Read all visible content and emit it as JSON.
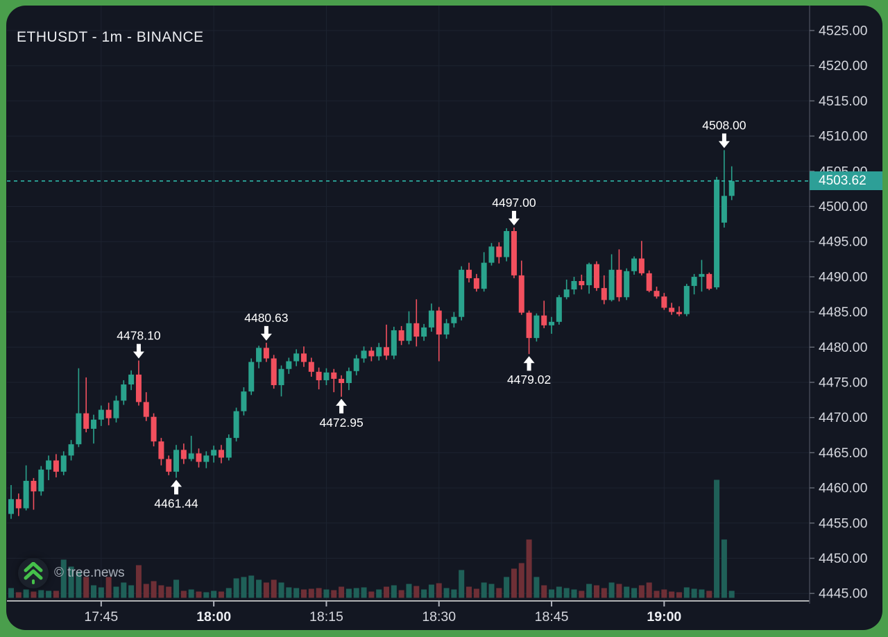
{
  "header": {
    "title": "ETHUSDT - 1m - BINANCE"
  },
  "watermark": {
    "text": "© tree.news",
    "logo": "tree-double-chevron-up-icon"
  },
  "price_tag": {
    "value": "4503.62"
  },
  "colors": {
    "frame": "#4a9e4c",
    "bg": "#131722",
    "grid": "#1d2330",
    "up": "#2aa38d",
    "down": "#f2505e",
    "vol_up": "#1f6058",
    "vol_down": "#6e2f36",
    "axis_text": "#d6d8df",
    "axis_text_bold": "#eceef2",
    "axis_line": "#454a57",
    "separator": "#e8e8e8",
    "last_line": "#2fb8a9",
    "tag_bg": "#2d9f97",
    "tag_text": "#ffffff",
    "annotation": "#ffffff",
    "title": "#eceef2",
    "watermark_text": "#aab0ba",
    "logo_green": "#45c04a"
  },
  "chart_data": {
    "type": "candlestick",
    "symbol": "ETHUSDT",
    "interval": "1m",
    "exchange": "BINANCE",
    "title": "ETHUSDT - 1m - BINANCE",
    "last_price": 4503.62,
    "y_axis": {
      "side": "right",
      "min": 4443,
      "max": 4527,
      "tick_step": 5,
      "tick_labels": [
        "4525.00",
        "4520.00",
        "4515.00",
        "4510.00",
        "4505.00",
        "4500.00",
        "4495.00",
        "4490.00",
        "4485.00",
        "4480.00",
        "4475.00",
        "4470.00",
        "4465.00",
        "4460.00",
        "4455.00",
        "4450.00",
        "4445.00"
      ],
      "tick_prices": [
        4525,
        4520,
        4515,
        4510,
        4505,
        4500,
        4495,
        4490,
        4485,
        4480,
        4475,
        4470,
        4465,
        4460,
        4455,
        4450,
        4445
      ]
    },
    "x_axis": {
      "ticks": [
        {
          "label": "17:45",
          "index": 12,
          "bold": false
        },
        {
          "label": "18:00",
          "index": 27,
          "bold": true
        },
        {
          "label": "18:15",
          "index": 42,
          "bold": false
        },
        {
          "label": "18:30",
          "index": 57,
          "bold": false
        },
        {
          "label": "18:45",
          "index": 72,
          "bold": false
        },
        {
          "label": "19:00",
          "index": 87,
          "bold": true
        }
      ]
    },
    "annotations": [
      {
        "label": "4478.10",
        "index": 17,
        "price": 4478.1,
        "direction": "down"
      },
      {
        "label": "4461.44",
        "index": 22,
        "price": 4461.44,
        "direction": "up"
      },
      {
        "label": "4480.63",
        "index": 34,
        "price": 4480.63,
        "direction": "down"
      },
      {
        "label": "4472.95",
        "index": 44,
        "price": 4472.95,
        "direction": "up"
      },
      {
        "label": "4497.00",
        "index": 67,
        "price": 4497.0,
        "direction": "down"
      },
      {
        "label": "4479.02",
        "index": 69,
        "price": 4479.02,
        "direction": "up"
      },
      {
        "label": "4508.00",
        "index": 95,
        "price": 4508.0,
        "direction": "down"
      }
    ],
    "candles": [
      {
        "t": "17:33",
        "o": 4456.3,
        "h": 4460.4,
        "l": 4455.6,
        "c": 4458.4,
        "v": 14
      },
      {
        "t": "17:34",
        "o": 4458.4,
        "h": 4459.2,
        "l": 4456.0,
        "c": 4457.1,
        "v": 8
      },
      {
        "t": "17:35",
        "o": 4457.1,
        "h": 4463.2,
        "l": 4456.8,
        "c": 4461.0,
        "v": 12
      },
      {
        "t": "17:36",
        "o": 4461.0,
        "h": 4461.4,
        "l": 4456.9,
        "c": 4459.5,
        "v": 9
      },
      {
        "t": "17:37",
        "o": 4459.5,
        "h": 4463.1,
        "l": 4458.9,
        "c": 4462.6,
        "v": 11
      },
      {
        "t": "17:38",
        "o": 4462.6,
        "h": 4464.6,
        "l": 4461.1,
        "c": 4463.9,
        "v": 10
      },
      {
        "t": "17:39",
        "o": 4463.9,
        "h": 4464.8,
        "l": 4461.5,
        "c": 4462.3,
        "v": 10
      },
      {
        "t": "17:40",
        "o": 4462.3,
        "h": 4465.2,
        "l": 4461.8,
        "c": 4464.6,
        "v": 55
      },
      {
        "t": "17:41",
        "o": 4464.6,
        "h": 4466.8,
        "l": 4463.9,
        "c": 4466.2,
        "v": 45
      },
      {
        "t": "17:42",
        "o": 4466.2,
        "h": 4477.0,
        "l": 4465.8,
        "c": 4470.6,
        "v": 38
      },
      {
        "t": "17:43",
        "o": 4470.6,
        "h": 4475.7,
        "l": 4467.9,
        "c": 4468.4,
        "v": 30
      },
      {
        "t": "17:44",
        "o": 4468.4,
        "h": 4470.4,
        "l": 4466.3,
        "c": 4469.7,
        "v": 18
      },
      {
        "t": "17:45",
        "o": 4469.7,
        "h": 4471.7,
        "l": 4468.8,
        "c": 4471.1,
        "v": 15
      },
      {
        "t": "17:46",
        "o": 4471.1,
        "h": 4472.1,
        "l": 4468.9,
        "c": 4469.9,
        "v": 30
      },
      {
        "t": "17:47",
        "o": 4469.9,
        "h": 4473.1,
        "l": 4469.3,
        "c": 4472.4,
        "v": 16
      },
      {
        "t": "17:48",
        "o": 4472.4,
        "h": 4475.3,
        "l": 4471.8,
        "c": 4474.7,
        "v": 22
      },
      {
        "t": "17:49",
        "o": 4474.7,
        "h": 4476.7,
        "l": 4473.9,
        "c": 4476.1,
        "v": 18
      },
      {
        "t": "17:50",
        "o": 4476.1,
        "h": 4478.1,
        "l": 4471.7,
        "c": 4472.2,
        "v": 47
      },
      {
        "t": "17:51",
        "o": 4472.2,
        "h": 4473.6,
        "l": 4469.5,
        "c": 4470.1,
        "v": 20
      },
      {
        "t": "17:52",
        "o": 4470.1,
        "h": 4470.6,
        "l": 4465.9,
        "c": 4466.6,
        "v": 24
      },
      {
        "t": "17:53",
        "o": 4466.6,
        "h": 4467.1,
        "l": 4463.2,
        "c": 4464.1,
        "v": 18
      },
      {
        "t": "17:54",
        "o": 4464.1,
        "h": 4464.6,
        "l": 4461.8,
        "c": 4462.3,
        "v": 16
      },
      {
        "t": "17:55",
        "o": 4462.3,
        "h": 4466.1,
        "l": 4461.44,
        "c": 4465.4,
        "v": 26
      },
      {
        "t": "17:56",
        "o": 4465.4,
        "h": 4466.3,
        "l": 4463.4,
        "c": 4464.1,
        "v": 10
      },
      {
        "t": "17:57",
        "o": 4464.1,
        "h": 4467.4,
        "l": 4463.8,
        "c": 4464.9,
        "v": 12
      },
      {
        "t": "17:58",
        "o": 4464.9,
        "h": 4465.6,
        "l": 4462.9,
        "c": 4463.7,
        "v": 9
      },
      {
        "t": "17:59",
        "o": 4463.7,
        "h": 4465.2,
        "l": 4462.8,
        "c": 4464.6,
        "v": 8
      },
      {
        "t": "18:00",
        "o": 4464.6,
        "h": 4466.0,
        "l": 4463.6,
        "c": 4465.4,
        "v": 10
      },
      {
        "t": "18:01",
        "o": 4465.4,
        "h": 4466.1,
        "l": 4463.5,
        "c": 4464.3,
        "v": 9
      },
      {
        "t": "18:02",
        "o": 4464.3,
        "h": 4467.6,
        "l": 4463.9,
        "c": 4467.1,
        "v": 14
      },
      {
        "t": "18:03",
        "o": 4467.1,
        "h": 4471.4,
        "l": 4466.6,
        "c": 4470.9,
        "v": 28
      },
      {
        "t": "18:04",
        "o": 4470.9,
        "h": 4474.3,
        "l": 4470.3,
        "c": 4473.7,
        "v": 30
      },
      {
        "t": "18:05",
        "o": 4473.7,
        "h": 4478.4,
        "l": 4473.2,
        "c": 4477.9,
        "v": 32
      },
      {
        "t": "18:06",
        "o": 4477.9,
        "h": 4480.2,
        "l": 4477.0,
        "c": 4479.9,
        "v": 26
      },
      {
        "t": "18:07",
        "o": 4479.9,
        "h": 4480.63,
        "l": 4477.9,
        "c": 4478.4,
        "v": 22
      },
      {
        "t": "18:08",
        "o": 4478.4,
        "h": 4478.9,
        "l": 4474.1,
        "c": 4474.6,
        "v": 26
      },
      {
        "t": "18:09",
        "o": 4474.6,
        "h": 4477.4,
        "l": 4473.0,
        "c": 4476.9,
        "v": 22
      },
      {
        "t": "18:10",
        "o": 4476.9,
        "h": 4478.5,
        "l": 4476.2,
        "c": 4478.0,
        "v": 15
      },
      {
        "t": "18:11",
        "o": 4478.0,
        "h": 4479.7,
        "l": 4477.3,
        "c": 4479.1,
        "v": 14
      },
      {
        "t": "18:12",
        "o": 4479.1,
        "h": 4480.1,
        "l": 4477.2,
        "c": 4477.9,
        "v": 12
      },
      {
        "t": "18:13",
        "o": 4477.9,
        "h": 4478.5,
        "l": 4475.8,
        "c": 4476.5,
        "v": 13
      },
      {
        "t": "18:14",
        "o": 4476.5,
        "h": 4477.1,
        "l": 4474.0,
        "c": 4475.3,
        "v": 14
      },
      {
        "t": "18:15",
        "o": 4475.3,
        "h": 4477.0,
        "l": 4474.6,
        "c": 4476.4,
        "v": 12
      },
      {
        "t": "18:16",
        "o": 4476.4,
        "h": 4476.9,
        "l": 4473.6,
        "c": 4475.5,
        "v": 11
      },
      {
        "t": "18:17",
        "o": 4475.5,
        "h": 4476.0,
        "l": 4472.95,
        "c": 4474.9,
        "v": 16
      },
      {
        "t": "18:18",
        "o": 4474.9,
        "h": 4477.1,
        "l": 4473.9,
        "c": 4476.6,
        "v": 13
      },
      {
        "t": "18:19",
        "o": 4476.6,
        "h": 4478.9,
        "l": 4476.0,
        "c": 4478.4,
        "v": 14
      },
      {
        "t": "18:20",
        "o": 4478.4,
        "h": 4480.1,
        "l": 4477.8,
        "c": 4479.5,
        "v": 15
      },
      {
        "t": "18:21",
        "o": 4479.5,
        "h": 4480.0,
        "l": 4478.0,
        "c": 4478.7,
        "v": 9
      },
      {
        "t": "18:22",
        "o": 4478.7,
        "h": 4480.6,
        "l": 4478.1,
        "c": 4480.0,
        "v": 12
      },
      {
        "t": "18:23",
        "o": 4480.0,
        "h": 4483.2,
        "l": 4478.2,
        "c": 4478.8,
        "v": 16
      },
      {
        "t": "18:24",
        "o": 4478.8,
        "h": 4482.9,
        "l": 4478.3,
        "c": 4482.4,
        "v": 18
      },
      {
        "t": "18:25",
        "o": 4482.4,
        "h": 4483.0,
        "l": 4480.3,
        "c": 4480.9,
        "v": 11
      },
      {
        "t": "18:26",
        "o": 4480.9,
        "h": 4485.1,
        "l": 4480.4,
        "c": 4483.4,
        "v": 20
      },
      {
        "t": "18:27",
        "o": 4483.4,
        "h": 4486.8,
        "l": 4480.1,
        "c": 4481.5,
        "v": 17
      },
      {
        "t": "18:28",
        "o": 4481.5,
        "h": 4483.3,
        "l": 4480.9,
        "c": 4482.8,
        "v": 12
      },
      {
        "t": "18:29",
        "o": 4482.8,
        "h": 4486.2,
        "l": 4482.2,
        "c": 4485.2,
        "v": 19
      },
      {
        "t": "18:30",
        "o": 4485.2,
        "h": 4485.7,
        "l": 4478.0,
        "c": 4481.8,
        "v": 21
      },
      {
        "t": "18:31",
        "o": 4481.8,
        "h": 4484.0,
        "l": 4481.2,
        "c": 4483.4,
        "v": 14
      },
      {
        "t": "18:32",
        "o": 4483.4,
        "h": 4485.0,
        "l": 4482.8,
        "c": 4484.3,
        "v": 12
      },
      {
        "t": "18:33",
        "o": 4484.3,
        "h": 4491.5,
        "l": 4483.8,
        "c": 4491.0,
        "v": 40
      },
      {
        "t": "18:34",
        "o": 4491.0,
        "h": 4492.0,
        "l": 4489.2,
        "c": 4489.8,
        "v": 16
      },
      {
        "t": "18:35",
        "o": 4489.8,
        "h": 4490.4,
        "l": 4487.9,
        "c": 4488.3,
        "v": 13
      },
      {
        "t": "18:36",
        "o": 4488.3,
        "h": 4493.5,
        "l": 4487.9,
        "c": 4492.0,
        "v": 22
      },
      {
        "t": "18:37",
        "o": 4492.0,
        "h": 4494.8,
        "l": 4491.6,
        "c": 4494.3,
        "v": 20
      },
      {
        "t": "18:38",
        "o": 4494.3,
        "h": 4494.9,
        "l": 4491.9,
        "c": 4492.8,
        "v": 14
      },
      {
        "t": "18:39",
        "o": 4492.8,
        "h": 4496.9,
        "l": 4492.2,
        "c": 4496.5,
        "v": 30
      },
      {
        "t": "18:40",
        "o": 4496.5,
        "h": 4497.0,
        "l": 4489.8,
        "c": 4490.2,
        "v": 42
      },
      {
        "t": "18:41",
        "o": 4490.2,
        "h": 4492.3,
        "l": 4484.6,
        "c": 4484.9,
        "v": 50
      },
      {
        "t": "18:42",
        "o": 4484.9,
        "h": 4485.2,
        "l": 4479.02,
        "c": 4481.3,
        "v": 84
      },
      {
        "t": "18:43",
        "o": 4481.3,
        "h": 4484.8,
        "l": 4480.8,
        "c": 4484.5,
        "v": 30
      },
      {
        "t": "18:44",
        "o": 4484.5,
        "h": 4486.6,
        "l": 4482.7,
        "c": 4483.1,
        "v": 18
      },
      {
        "t": "18:45",
        "o": 4483.1,
        "h": 4484.3,
        "l": 4481.9,
        "c": 4483.6,
        "v": 12
      },
      {
        "t": "18:46",
        "o": 4483.6,
        "h": 4487.4,
        "l": 4483.2,
        "c": 4487.1,
        "v": 16
      },
      {
        "t": "18:47",
        "o": 4487.1,
        "h": 4489.6,
        "l": 4486.8,
        "c": 4488.2,
        "v": 14
      },
      {
        "t": "18:48",
        "o": 4488.2,
        "h": 4490.0,
        "l": 4487.5,
        "c": 4489.4,
        "v": 12
      },
      {
        "t": "18:49",
        "o": 4489.4,
        "h": 4490.3,
        "l": 4488.2,
        "c": 4488.8,
        "v": 10
      },
      {
        "t": "18:50",
        "o": 4488.8,
        "h": 4492.0,
        "l": 4487.6,
        "c": 4491.8,
        "v": 20
      },
      {
        "t": "18:51",
        "o": 4491.8,
        "h": 4492.2,
        "l": 4488.0,
        "c": 4488.4,
        "v": 18
      },
      {
        "t": "18:52",
        "o": 4488.4,
        "h": 4490.2,
        "l": 4486.1,
        "c": 4486.7,
        "v": 14
      },
      {
        "t": "18:53",
        "o": 4486.7,
        "h": 4493.2,
        "l": 4486.5,
        "c": 4491.0,
        "v": 22
      },
      {
        "t": "18:54",
        "o": 4491.0,
        "h": 4493.9,
        "l": 4486.5,
        "c": 4487.1,
        "v": 20
      },
      {
        "t": "18:55",
        "o": 4487.1,
        "h": 4491.2,
        "l": 4486.7,
        "c": 4490.8,
        "v": 16
      },
      {
        "t": "18:56",
        "o": 4490.8,
        "h": 4492.9,
        "l": 4490.3,
        "c": 4492.6,
        "v": 14
      },
      {
        "t": "18:57",
        "o": 4492.6,
        "h": 4495.1,
        "l": 4490.2,
        "c": 4490.5,
        "v": 18
      },
      {
        "t": "18:58",
        "o": 4490.5,
        "h": 4490.9,
        "l": 4487.8,
        "c": 4488.0,
        "v": 22
      },
      {
        "t": "18:59",
        "o": 4488.0,
        "h": 4488.6,
        "l": 4486.9,
        "c": 4487.2,
        "v": 10
      },
      {
        "t": "19:00",
        "o": 4487.2,
        "h": 4487.7,
        "l": 4485.3,
        "c": 4485.6,
        "v": 12
      },
      {
        "t": "19:01",
        "o": 4485.6,
        "h": 4486.3,
        "l": 4484.6,
        "c": 4485.0,
        "v": 9
      },
      {
        "t": "19:02",
        "o": 4485.0,
        "h": 4485.8,
        "l": 4484.4,
        "c": 4484.7,
        "v": 8
      },
      {
        "t": "19:03",
        "o": 4484.7,
        "h": 4489.0,
        "l": 4484.4,
        "c": 4488.7,
        "v": 15
      },
      {
        "t": "19:04",
        "o": 4488.7,
        "h": 4490.4,
        "l": 4487.5,
        "c": 4490.0,
        "v": 13
      },
      {
        "t": "19:05",
        "o": 4490.0,
        "h": 4492.4,
        "l": 4487.9,
        "c": 4490.4,
        "v": 12
      },
      {
        "t": "19:06",
        "o": 4490.4,
        "h": 4490.6,
        "l": 4488.1,
        "c": 4488.3,
        "v": 10
      },
      {
        "t": "19:07",
        "o": 4488.5,
        "h": 4504.2,
        "l": 4488.2,
        "c": 4503.8,
        "v": 170
      },
      {
        "t": "19:08",
        "o": 4497.7,
        "h": 4508.0,
        "l": 4497.0,
        "c": 4501.5,
        "v": 84
      },
      {
        "t": "19:09",
        "o": 4501.5,
        "h": 4505.7,
        "l": 4500.9,
        "c": 4503.62,
        "v": 10
      }
    ]
  }
}
